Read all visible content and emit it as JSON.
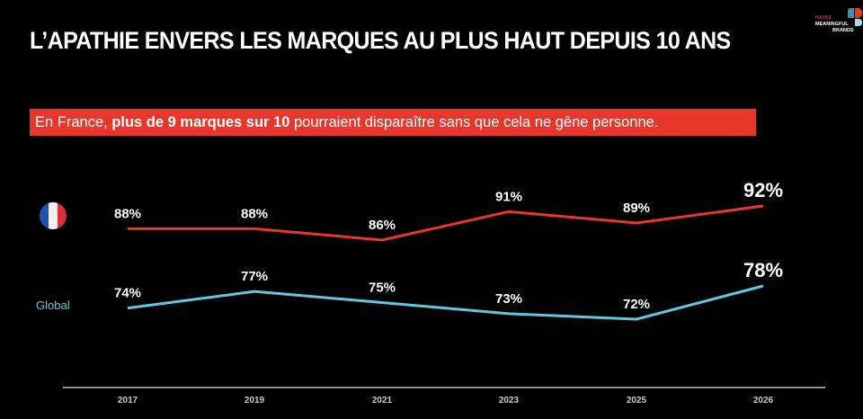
{
  "header": {
    "title": "L’APATHIE ENVERS LES MARQUES AU PLUS HAUT DEPUIS 10 ANS",
    "logo": {
      "brand": "HAVAS",
      "line1": "MEANINGFUL",
      "line2": "BRANDS",
      "trademark": "™"
    }
  },
  "banner": {
    "prefix": "En France, ",
    "highlight": "plus de 9 marques sur 10",
    "suffix": " pourraient disparaître sans que cela ne gêne personne.",
    "background_color": "#e8372a"
  },
  "legend": {
    "france_icon": "france-flag-icon",
    "global_label": "Global"
  },
  "colors": {
    "france_line": "#e8372a",
    "global_line": "#5ec8e0",
    "flag_blue": "#2451b0",
    "flag_white": "#f0f0f0",
    "flag_red": "#d6303a",
    "axis": "#bdbdbd"
  },
  "chart_data": {
    "type": "line",
    "title": "L’APATHIE ENVERS LES MARQUES AU PLUS HAUT DEPUIS 10 ANS",
    "xlabel": "",
    "ylabel": "",
    "categories": [
      "2017",
      "2019",
      "2021",
      "2023",
      "2025",
      "2026"
    ],
    "series": [
      {
        "name": "France",
        "values": [
          88,
          88,
          86,
          91,
          89,
          92
        ],
        "labels": [
          "88%",
          "88%",
          "86%",
          "91%",
          "89%",
          "92%"
        ],
        "color": "#e8372a"
      },
      {
        "name": "Global",
        "values": [
          74,
          77,
          75,
          73,
          72,
          78
        ],
        "labels": [
          "74%",
          "77%",
          "75%",
          "73%",
          "72%",
          "78%"
        ],
        "color": "#5ec8e0"
      }
    ],
    "grid": false,
    "legend": "left",
    "value_unit": "%"
  }
}
